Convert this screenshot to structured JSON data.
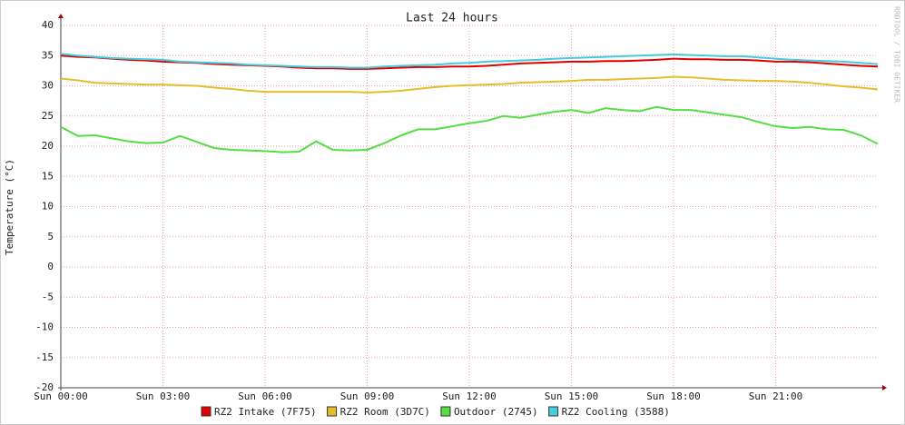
{
  "chart_data": {
    "type": "line",
    "title": "Last 24 hours",
    "y_label": "Temperature (°C)",
    "watermark": "RRDTOOL / TOBI OETIKER",
    "x": [
      0,
      0.5,
      1,
      1.5,
      2,
      2.5,
      3,
      3.5,
      4,
      4.5,
      5,
      5.5,
      6,
      6.5,
      7,
      7.5,
      8,
      8.5,
      9,
      9.5,
      10,
      10.5,
      11,
      11.5,
      12,
      12.5,
      13,
      13.5,
      14,
      14.5,
      15,
      15.5,
      16,
      16.5,
      17,
      17.5,
      18,
      18.5,
      19,
      19.5,
      20,
      20.5,
      21,
      21.5,
      22,
      22.5,
      23,
      23.5,
      24
    ],
    "xlim": [
      0,
      24
    ],
    "xticks": [
      {
        "value": 0,
        "label": "Sun 00:00"
      },
      {
        "value": 3,
        "label": "Sun 03:00"
      },
      {
        "value": 6,
        "label": "Sun 06:00"
      },
      {
        "value": 9,
        "label": "Sun 09:00"
      },
      {
        "value": 12,
        "label": "Sun 12:00"
      },
      {
        "value": 15,
        "label": "Sun 15:00"
      },
      {
        "value": 18,
        "label": "Sun 18:00"
      },
      {
        "value": 21,
        "label": "Sun 21:00"
      }
    ],
    "ylim": [
      -20,
      40
    ],
    "yticks": [
      -20,
      -15,
      -10,
      -5,
      0,
      5,
      10,
      15,
      20,
      25,
      30,
      35,
      40
    ],
    "grid": true,
    "legend": "bottom",
    "series": [
      {
        "name": "RZ2 Intake (7F75)",
        "color": "#e00000",
        "values": [
          35,
          34.8,
          34.7,
          34.5,
          34.3,
          34.2,
          34,
          33.9,
          33.8,
          33.6,
          33.5,
          33.4,
          33.3,
          33.2,
          33,
          32.9,
          32.9,
          32.8,
          32.8,
          32.9,
          33,
          33.1,
          33.1,
          33.2,
          33.2,
          33.3,
          33.5,
          33.7,
          33.8,
          33.9,
          34,
          34,
          34.1,
          34.1,
          34.2,
          34.3,
          34.5,
          34.4,
          34.4,
          34.3,
          34.3,
          34.2,
          34,
          34,
          33.9,
          33.7,
          33.5,
          33.3,
          33.2
        ]
      },
      {
        "name": "RZ2 Room (3D7C)",
        "color": "#e6be2a",
        "values": [
          31.2,
          30.9,
          30.5,
          30.4,
          30.3,
          30.2,
          30.2,
          30.1,
          30,
          29.7,
          29.5,
          29.2,
          29,
          29,
          29,
          29,
          29,
          29,
          28.9,
          29,
          29.2,
          29.5,
          29.8,
          30,
          30.1,
          30.2,
          30.3,
          30.5,
          30.6,
          30.7,
          30.8,
          31,
          31,
          31.1,
          31.2,
          31.3,
          31.5,
          31.4,
          31.2,
          31,
          30.9,
          30.8,
          30.8,
          30.7,
          30.5,
          30.2,
          29.9,
          29.7,
          29.4
        ]
      },
      {
        "name": "Outdoor (2745)",
        "color": "#55dd44",
        "values": [
          23.2,
          21.7,
          21.8,
          21.3,
          20.8,
          20.5,
          20.6,
          21.7,
          20.7,
          19.7,
          19.4,
          19.3,
          19.2,
          19,
          19.1,
          20.8,
          19.4,
          19.3,
          19.4,
          20.5,
          21.8,
          22.8,
          22.8,
          23.3,
          23.8,
          24.2,
          25,
          24.7,
          25.2,
          25.7,
          26,
          25.5,
          26.3,
          26,
          25.8,
          26.5,
          26,
          26,
          25.6,
          25.2,
          24.8,
          24,
          23.3,
          23,
          23.2,
          22.8,
          22.7,
          21.8,
          20.4
        ]
      },
      {
        "name": "RZ2 Cooling (3588)",
        "color": "#44ccdd",
        "values": [
          35.3,
          35,
          34.8,
          34.6,
          34.5,
          34.4,
          34.3,
          34,
          33.9,
          33.8,
          33.7,
          33.5,
          33.4,
          33.3,
          33.2,
          33.1,
          33.1,
          33,
          33,
          33.2,
          33.3,
          33.4,
          33.5,
          33.7,
          33.8,
          34,
          34.1,
          34.2,
          34.3,
          34.5,
          34.6,
          34.7,
          34.8,
          34.9,
          35,
          35.1,
          35.2,
          35.1,
          35,
          34.9,
          34.9,
          34.7,
          34.5,
          34.3,
          34.2,
          34.1,
          34,
          33.8,
          33.6
        ]
      }
    ]
  }
}
